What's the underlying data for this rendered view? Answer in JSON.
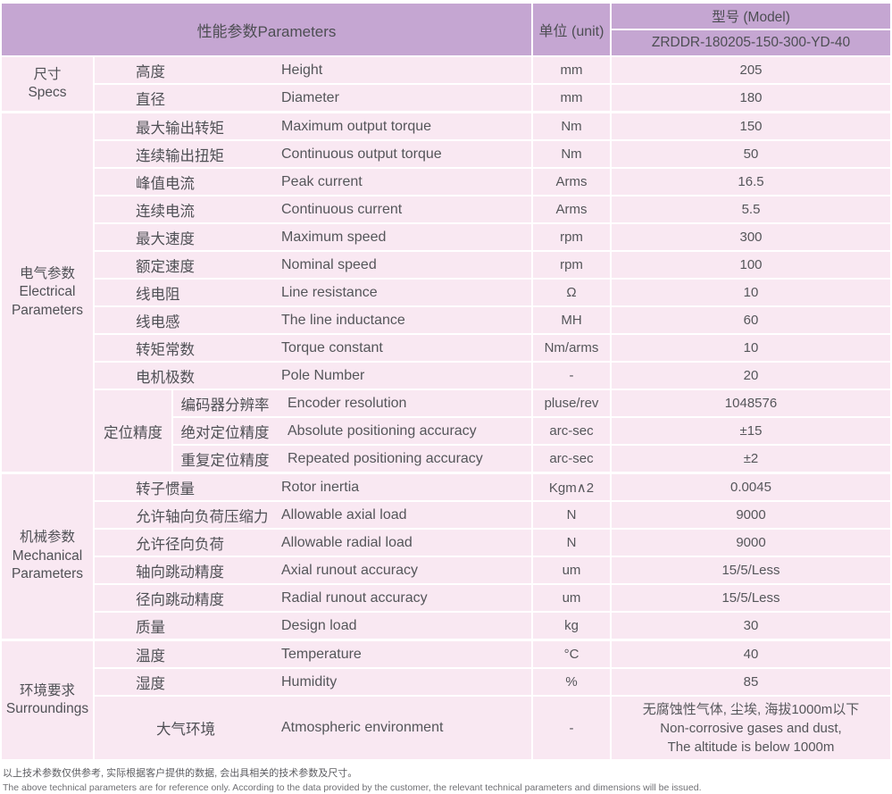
{
  "colors": {
    "header_bg": "#c5a6d2",
    "cell_bg": "#f9e8f2",
    "text": "#55565a",
    "page_bg": "#ffffff"
  },
  "header": {
    "parameters_label": "性能参数Parameters",
    "unit_label": "单位 (unit)",
    "model_label": "型号 (Model)",
    "model_value": "ZRDDR-180205-150-300-YD-40"
  },
  "categories": [
    {
      "lines": [
        "尺寸",
        "Specs"
      ]
    },
    {
      "lines": [
        "电气参数",
        "Electrical",
        "Parameters"
      ]
    },
    {
      "lines": [
        "机械参数",
        "Mechanical",
        "Parameters"
      ]
    },
    {
      "lines": [
        "环境要求",
        "Surroundings"
      ]
    }
  ],
  "positioning_group_label": "定位精度",
  "rows": [
    {
      "zh": "高度",
      "en": "Height",
      "unit": "mm",
      "value": "205"
    },
    {
      "zh": "直径",
      "en": "Diameter",
      "unit": "mm",
      "value": "180"
    },
    {
      "zh": "最大输出转矩",
      "en": "Maximum output torque",
      "unit": "Nm",
      "value": "150"
    },
    {
      "zh": "连续输出扭矩",
      "en": "Continuous output torque",
      "unit": "Nm",
      "value": "50"
    },
    {
      "zh": "峰值电流",
      "en": "Peak current",
      "unit": "Arms",
      "value": "16.5"
    },
    {
      "zh": "连续电流",
      "en": "Continuous current",
      "unit": "Arms",
      "value": "5.5"
    },
    {
      "zh": "最大速度",
      "en": "Maximum speed",
      "unit": "rpm",
      "value": "300"
    },
    {
      "zh": "额定速度",
      "en": "Nominal speed",
      "unit": "rpm",
      "value": "100"
    },
    {
      "zh": "线电阻",
      "en": "Line resistance",
      "unit": "Ω",
      "value": "10"
    },
    {
      "zh": "线电感",
      "en": "The line inductance",
      "unit": "MH",
      "value": "60"
    },
    {
      "zh": "转矩常数",
      "en": "Torque constant",
      "unit": "Nm/arms",
      "value": "10"
    },
    {
      "zh": "电机极数",
      "en": "Pole Number",
      "unit": "-",
      "value": "20"
    },
    {
      "zh": "编码器分辨率",
      "en": "Encoder resolution",
      "unit": "pluse/rev",
      "value": "1048576"
    },
    {
      "zh": "绝对定位精度",
      "en": "Absolute positioning accuracy",
      "unit": "arc-sec",
      "value": "±15"
    },
    {
      "zh": "重复定位精度",
      "en": "Repeated positioning accuracy",
      "unit": "arc-sec",
      "value": "±2"
    },
    {
      "zh": "转子惯量",
      "en": "Rotor inertia",
      "unit": "Kgm∧2",
      "value": "0.0045"
    },
    {
      "zh": "允许轴向负荷压缩力",
      "en": "Allowable axial load",
      "unit": "N",
      "value": "9000"
    },
    {
      "zh": "允许径向负荷",
      "en": "Allowable radial load",
      "unit": "N",
      "value": "9000"
    },
    {
      "zh": "轴向跳动精度",
      "en": "Axial runout accuracy",
      "unit": "um",
      "value": "15/5/Less"
    },
    {
      "zh": "径向跳动精度",
      "en": "Radial runout accuracy",
      "unit": "um",
      "value": "15/5/Less"
    },
    {
      "zh": "质量",
      "en": "Design load",
      "unit": "kg",
      "value": "30"
    },
    {
      "zh": "温度",
      "en": "Temperature",
      "unit": "°C",
      "value": "40"
    },
    {
      "zh": "湿度",
      "en": "Humidity",
      "unit": "%",
      "value": "85"
    }
  ],
  "atmosphere_row": {
    "zh": "大气环境",
    "en": "Atmospheric environment",
    "unit": "-",
    "value_lines": [
      "无腐蚀性气体, 尘埃, 海拔1000m以下",
      "Non-corrosive gases and dust,",
      "The altitude is below 1000m"
    ]
  },
  "notes": {
    "zh": "以上技术参数仅供参考, 实际根据客户提供的数据, 会出具相关的技术参数及尺寸。",
    "en": "The above technical parameters are for reference only. According to the data provided by the customer, the relevant technical parameters and dimensions will be issued."
  }
}
